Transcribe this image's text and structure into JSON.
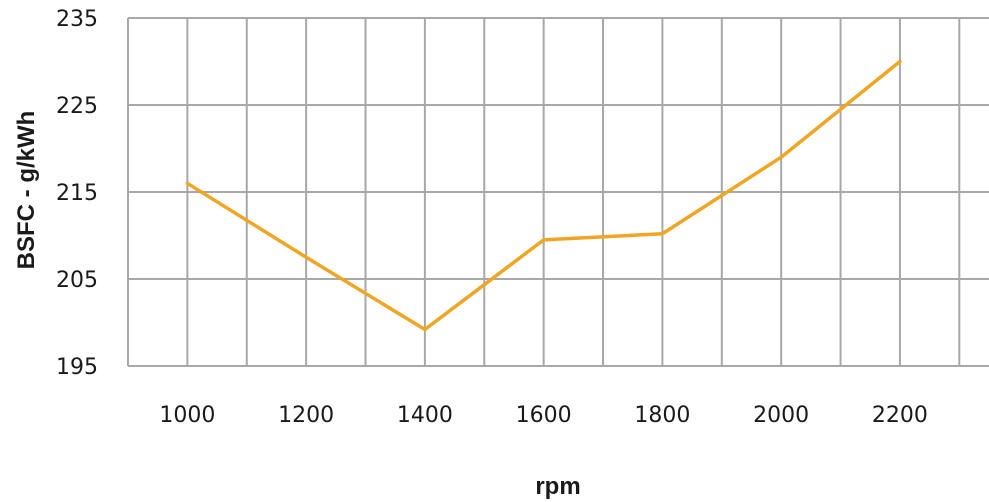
{
  "chart_data": {
    "type": "line",
    "title": "",
    "xlabel": "rpm",
    "ylabel": "BSFC - g/kWh",
    "x": [
      1000,
      1200,
      1400,
      1600,
      1800,
      2000,
      2200
    ],
    "x_ticks": [
      "1000",
      "1200",
      "1400",
      "1600",
      "1800",
      "2000",
      "2200"
    ],
    "y_ticks": [
      "235",
      "225",
      "215",
      "205",
      "195"
    ],
    "y_tick_values": [
      235,
      225,
      215,
      205,
      195
    ],
    "xlim": [
      900,
      2350
    ],
    "ylim": [
      195,
      235
    ],
    "grid": true,
    "legend": "none",
    "series": [
      {
        "color": "#f0a524",
        "values": [
          216,
          207.5,
          199.2,
          209.5,
          210.2,
          219,
          230
        ]
      }
    ]
  }
}
